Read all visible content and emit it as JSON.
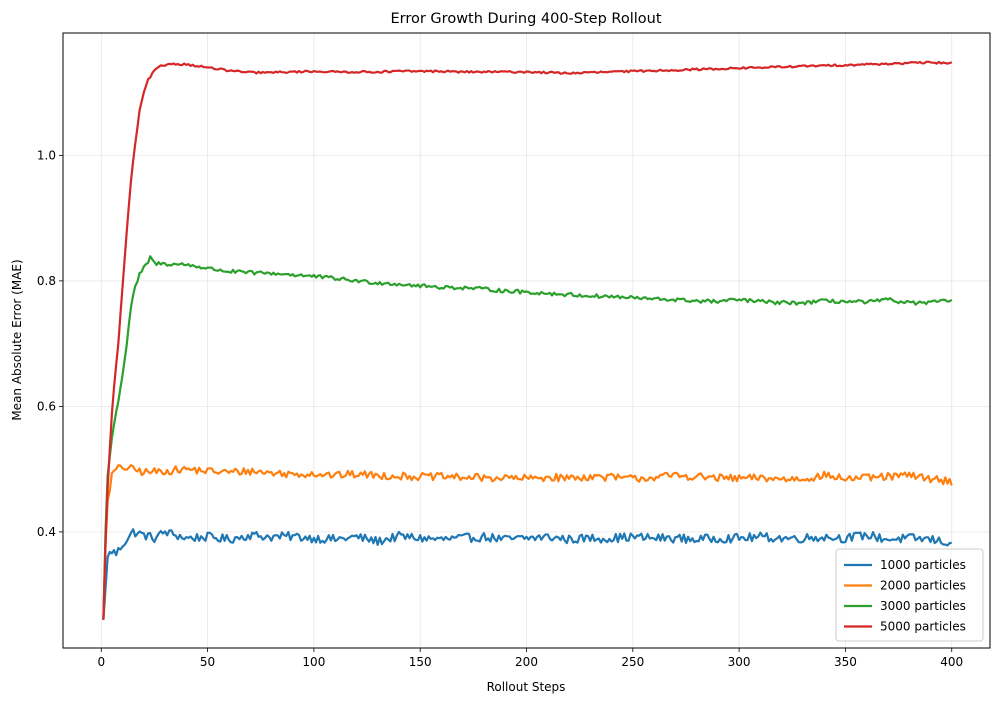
{
  "chart_data": {
    "type": "line",
    "title": "Error Growth During 400-Step Rollout",
    "xlabel": "Rollout Steps",
    "ylabel": "Mean Absolute Error (MAE)",
    "xlim": [
      -18,
      418
    ],
    "ylim": [
      0.215,
      1.195
    ],
    "xticks": [
      0,
      50,
      100,
      150,
      200,
      250,
      300,
      350,
      400
    ],
    "xtick_labels": [
      "0",
      "50",
      "100",
      "150",
      "200",
      "250",
      "300",
      "350",
      "400"
    ],
    "yticks": [
      0.4,
      0.6,
      0.8,
      1.0
    ],
    "ytick_labels": [
      "0.4",
      "0.6",
      "0.8",
      "1.0"
    ],
    "grid": true,
    "legend_position": "lower-right",
    "series": [
      {
        "name": "1000 particles",
        "color": "#1f77b4",
        "points": [
          [
            1,
            0.26
          ],
          [
            2,
            0.31
          ],
          [
            3,
            0.36
          ],
          [
            5,
            0.37
          ],
          [
            7,
            0.365
          ],
          [
            10,
            0.38
          ],
          [
            15,
            0.4
          ],
          [
            20,
            0.395
          ],
          [
            25,
            0.39
          ],
          [
            30,
            0.4
          ],
          [
            40,
            0.39
          ],
          [
            50,
            0.392
          ],
          [
            60,
            0.388
          ],
          [
            70,
            0.395
          ],
          [
            80,
            0.392
          ],
          [
            90,
            0.393
          ],
          [
            100,
            0.39
          ],
          [
            110,
            0.388
          ],
          [
            120,
            0.392
          ],
          [
            130,
            0.385
          ],
          [
            140,
            0.393
          ],
          [
            150,
            0.39
          ],
          [
            160,
            0.388
          ],
          [
            170,
            0.39
          ],
          [
            180,
            0.392
          ],
          [
            190,
            0.388
          ],
          [
            200,
            0.39
          ],
          [
            210,
            0.392
          ],
          [
            220,
            0.388
          ],
          [
            230,
            0.39
          ],
          [
            240,
            0.39
          ],
          [
            250,
            0.392
          ],
          [
            260,
            0.39
          ],
          [
            270,
            0.39
          ],
          [
            280,
            0.388
          ],
          [
            290,
            0.39
          ],
          [
            300,
            0.39
          ],
          [
            310,
            0.392
          ],
          [
            320,
            0.39
          ],
          [
            330,
            0.39
          ],
          [
            340,
            0.392
          ],
          [
            350,
            0.39
          ],
          [
            360,
            0.395
          ],
          [
            370,
            0.388
          ],
          [
            380,
            0.39
          ],
          [
            390,
            0.388
          ],
          [
            400,
            0.382
          ]
        ],
        "noise": 0.007
      },
      {
        "name": "2000 particles",
        "color": "#ff7f0e",
        "points": [
          [
            1,
            0.26
          ],
          [
            2,
            0.38
          ],
          [
            3,
            0.45
          ],
          [
            5,
            0.49
          ],
          [
            7,
            0.5
          ],
          [
            10,
            0.503
          ],
          [
            15,
            0.5
          ],
          [
            20,
            0.495
          ],
          [
            30,
            0.497
          ],
          [
            40,
            0.5
          ],
          [
            50,
            0.497
          ],
          [
            60,
            0.495
          ],
          [
            70,
            0.497
          ],
          [
            80,
            0.494
          ],
          [
            90,
            0.492
          ],
          [
            100,
            0.493
          ],
          [
            110,
            0.49
          ],
          [
            120,
            0.492
          ],
          [
            130,
            0.49
          ],
          [
            140,
            0.489
          ],
          [
            150,
            0.488
          ],
          [
            160,
            0.488
          ],
          [
            170,
            0.487
          ],
          [
            180,
            0.486
          ],
          [
            190,
            0.486
          ],
          [
            200,
            0.485
          ],
          [
            210,
            0.487
          ],
          [
            220,
            0.486
          ],
          [
            230,
            0.488
          ],
          [
            240,
            0.487
          ],
          [
            250,
            0.485
          ],
          [
            260,
            0.487
          ],
          [
            270,
            0.49
          ],
          [
            280,
            0.488
          ],
          [
            290,
            0.486
          ],
          [
            300,
            0.485
          ],
          [
            310,
            0.486
          ],
          [
            320,
            0.484
          ],
          [
            330,
            0.485
          ],
          [
            340,
            0.49
          ],
          [
            350,
            0.485
          ],
          [
            360,
            0.486
          ],
          [
            370,
            0.488
          ],
          [
            380,
            0.49
          ],
          [
            390,
            0.485
          ],
          [
            400,
            0.48
          ]
        ],
        "noise": 0.006
      },
      {
        "name": "3000 particles",
        "color": "#2ca02c",
        "points": [
          [
            1,
            0.26
          ],
          [
            2,
            0.4
          ],
          [
            3,
            0.49
          ],
          [
            5,
            0.55
          ],
          [
            8,
            0.61
          ],
          [
            10,
            0.65
          ],
          [
            12,
            0.7
          ],
          [
            14,
            0.76
          ],
          [
            16,
            0.79
          ],
          [
            18,
            0.81
          ],
          [
            20,
            0.82
          ],
          [
            22,
            0.83
          ],
          [
            23,
            0.838
          ],
          [
            25,
            0.828
          ],
          [
            30,
            0.827
          ],
          [
            40,
            0.826
          ],
          [
            50,
            0.82
          ],
          [
            60,
            0.815
          ],
          [
            70,
            0.813
          ],
          [
            80,
            0.812
          ],
          [
            90,
            0.81
          ],
          [
            100,
            0.807
          ],
          [
            110,
            0.804
          ],
          [
            120,
            0.8
          ],
          [
            130,
            0.797
          ],
          [
            140,
            0.795
          ],
          [
            150,
            0.792
          ],
          [
            160,
            0.79
          ],
          [
            170,
            0.789
          ],
          [
            180,
            0.787
          ],
          [
            190,
            0.784
          ],
          [
            200,
            0.782
          ],
          [
            210,
            0.78
          ],
          [
            220,
            0.778
          ],
          [
            230,
            0.776
          ],
          [
            240,
            0.775
          ],
          [
            250,
            0.773
          ],
          [
            260,
            0.771
          ],
          [
            270,
            0.77
          ],
          [
            280,
            0.768
          ],
          [
            290,
            0.767
          ],
          [
            300,
            0.77
          ],
          [
            310,
            0.767
          ],
          [
            320,
            0.765
          ],
          [
            330,
            0.765
          ],
          [
            340,
            0.768
          ],
          [
            350,
            0.767
          ],
          [
            360,
            0.766
          ],
          [
            370,
            0.77
          ],
          [
            380,
            0.765
          ],
          [
            390,
            0.765
          ],
          [
            400,
            0.77
          ]
        ],
        "noise": 0.003
      },
      {
        "name": "5000 particles",
        "color": "#d62728",
        "points": [
          [
            1,
            0.26
          ],
          [
            2,
            0.38
          ],
          [
            3,
            0.47
          ],
          [
            4,
            0.53
          ],
          [
            5,
            0.59
          ],
          [
            6,
            0.63
          ],
          [
            8,
            0.7
          ],
          [
            10,
            0.79
          ],
          [
            12,
            0.88
          ],
          [
            14,
            0.96
          ],
          [
            16,
            1.02
          ],
          [
            18,
            1.07
          ],
          [
            20,
            1.1
          ],
          [
            22,
            1.12
          ],
          [
            25,
            1.135
          ],
          [
            28,
            1.142
          ],
          [
            32,
            1.146
          ],
          [
            40,
            1.145
          ],
          [
            50,
            1.14
          ],
          [
            60,
            1.135
          ],
          [
            70,
            1.132
          ],
          [
            80,
            1.132
          ],
          [
            90,
            1.133
          ],
          [
            100,
            1.134
          ],
          [
            110,
            1.133
          ],
          [
            120,
            1.133
          ],
          [
            130,
            1.133
          ],
          [
            140,
            1.134
          ],
          [
            150,
            1.134
          ],
          [
            160,
            1.134
          ],
          [
            170,
            1.133
          ],
          [
            180,
            1.133
          ],
          [
            190,
            1.133
          ],
          [
            200,
            1.133
          ],
          [
            210,
            1.132
          ],
          [
            220,
            1.131
          ],
          [
            230,
            1.132
          ],
          [
            240,
            1.133
          ],
          [
            250,
            1.134
          ],
          [
            260,
            1.135
          ],
          [
            270,
            1.136
          ],
          [
            280,
            1.137
          ],
          [
            290,
            1.138
          ],
          [
            300,
            1.139
          ],
          [
            310,
            1.14
          ],
          [
            320,
            1.141
          ],
          [
            330,
            1.142
          ],
          [
            340,
            1.143
          ],
          [
            350,
            1.144
          ],
          [
            360,
            1.145
          ],
          [
            370,
            1.146
          ],
          [
            380,
            1.147
          ],
          [
            390,
            1.148
          ],
          [
            400,
            1.147
          ]
        ],
        "noise": 0.0015
      }
    ]
  }
}
